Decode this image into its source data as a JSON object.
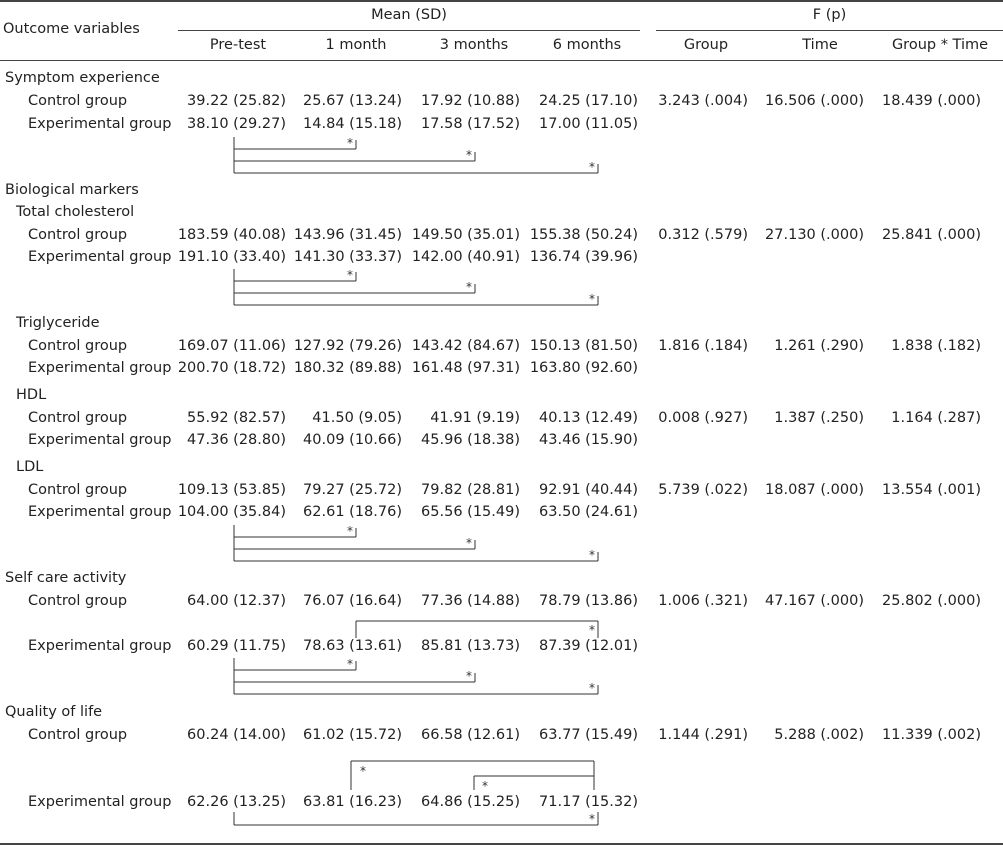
{
  "header": {
    "outcome_label": "Outcome variables",
    "mean_label": "Mean (SD)",
    "f_label": "F (p)",
    "mean_cols": [
      "Pre-test",
      "1 month",
      "3 months",
      "6 months"
    ],
    "f_cols": [
      "Group",
      "Time",
      "Group * Time"
    ]
  },
  "sections": {
    "symptom": {
      "title": "Symptom experience",
      "control_label": "Control group",
      "exp_label": "Experimental group",
      "control": [
        "39.22 (25.82)",
        "25.67 (13.24)",
        "17.92 (10.88)",
        "24.25 (17.10)"
      ],
      "exp": [
        "38.10 (29.27)",
        "14.84 (15.18)",
        "17.58 (17.52)",
        "17.00 (11.05)"
      ],
      "f": [
        "3.243 (.004)",
        "16.506 (.000)",
        "18.439 (.000)"
      ]
    },
    "bio": {
      "title": "Biological markers"
    },
    "chol": {
      "title": "Total cholesterol",
      "control_label": "Control group",
      "exp_label": "Experimental group",
      "control": [
        "183.59 (40.08)",
        "143.96 (31.45)",
        "149.50 (35.01)",
        "155.38 (50.24)"
      ],
      "exp": [
        "191.10 (33.40)",
        "141.30 (33.37)",
        "142.00 (40.91)",
        "136.74 (39.96)"
      ],
      "f": [
        "0.312 (.579)",
        "27.130 (.000)",
        "25.841 (.000)"
      ]
    },
    "trig": {
      "title": "Triglyceride",
      "control_label": "Control group",
      "exp_label": "Experimental group",
      "control": [
        "169.07 (11.06)",
        "127.92 (79.26)",
        "143.42 (84.67)",
        "150.13 (81.50)"
      ],
      "exp": [
        "200.70 (18.72)",
        "180.32 (89.88)",
        "161.48 (97.31)",
        "163.80 (92.60)"
      ],
      "f": [
        "1.816 (.184)",
        "1.261 (.290)",
        "1.838 (.182)"
      ]
    },
    "hdl": {
      "title": "HDL",
      "control_label": "Control group",
      "exp_label": "Experimental group",
      "control": [
        "55.92 (82.57)",
        "41.50 (9.05)",
        "41.91 (9.19)",
        "40.13 (12.49)"
      ],
      "exp": [
        "47.36 (28.80)",
        "40.09 (10.66)",
        "45.96 (18.38)",
        "43.46 (15.90)"
      ],
      "f": [
        "0.008 (.927)",
        "1.387 (.250)",
        "1.164 (.287)"
      ]
    },
    "ldl": {
      "title": "LDL",
      "control_label": "Control group",
      "exp_label": "Experimental group",
      "control": [
        "109.13 (53.85)",
        "79.27 (25.72)",
        "79.82 (28.81)",
        "92.91 (40.44)"
      ],
      "exp": [
        "104.00 (35.84)",
        "62.61 (18.76)",
        "65.56 (15.49)",
        "63.50 (24.61)"
      ],
      "f": [
        "5.739 (.022)",
        "18.087 (.000)",
        "13.554 (.001)"
      ]
    },
    "selfcare": {
      "title": "Self care activity",
      "control_label": "Control group",
      "exp_label": "Experimental group",
      "control": [
        "64.00 (12.37)",
        "76.07 (16.64)",
        "77.36 (14.88)",
        "78.79 (13.86)"
      ],
      "exp": [
        "60.29 (11.75)",
        "78.63 (13.61)",
        "85.81 (13.73)",
        "87.39 (12.01)"
      ],
      "f": [
        "1.006 (.321)",
        "47.167 (.000)",
        "25.802 (.000)"
      ]
    },
    "qol": {
      "title": "Quality of life",
      "control_label": "Control group",
      "exp_label": "Experimental group",
      "control": [
        "60.24 (14.00)",
        "61.02 (15.72)",
        "66.58 (12.61)",
        "63.77 (15.49)"
      ],
      "exp": [
        "62.26 (13.25)",
        "63.81 (16.23)",
        "64.86 (15.25)",
        "71.17 (15.32)"
      ],
      "f": [
        "1.144 (.291)",
        "5.288 (.002)",
        "11.339 (.002)"
      ]
    }
  },
  "significance_mark": "*"
}
